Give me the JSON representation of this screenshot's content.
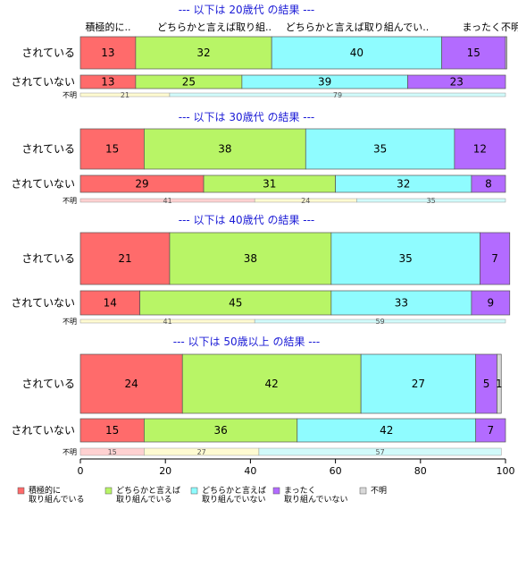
{
  "chart_data": {
    "type": "bar",
    "orientation": "horizontal",
    "stacked": true,
    "xlim": [
      0,
      100
    ],
    "x_ticks": [
      "0",
      "20",
      "40",
      "60",
      "80",
      "100"
    ],
    "top_header_labels": [
      "積極的に..",
      "どちらかと言えば取り組..",
      "どちらかと言えば取り組んでい..",
      "まったく.",
      "不明"
    ],
    "legend_position": "bottom",
    "colors": [
      "#ff6b6b",
      "#b8f566",
      "#8ffcff",
      "#b36bff",
      "#d9d9d9"
    ],
    "na_colors": [
      "#ffd1d1",
      "#fffbd1",
      "#d1fbfb"
    ],
    "legend": [
      {
        "lines": [
          "積極的に",
          "取り組んでいる"
        ]
      },
      {
        "lines": [
          "どちらかと言えば",
          "取り組んでいる"
        ]
      },
      {
        "lines": [
          "どちらかと言えば",
          "取り組んでいない"
        ]
      },
      {
        "lines": [
          "まったく",
          "取り組んでいない"
        ]
      },
      {
        "lines": [
          "不明"
        ]
      }
    ],
    "groups": [
      {
        "title": "--- 以下は 20歳代 の結果 ---",
        "rows": [
          {
            "label": "されている",
            "values": [
              13,
              32,
              40,
              15,
              0.3
            ],
            "value_labels": [
              "13",
              "32",
              "40",
              "15",
              ""
            ]
          },
          {
            "label": "されていない",
            "values": [
              13,
              25,
              39,
              23,
              0
            ],
            "value_labels": [
              "13",
              "25",
              "39",
              "23",
              ""
            ]
          },
          {
            "label": "不明",
            "values": [
              21,
              79
            ],
            "value_labels": [
              "21",
              "79"
            ],
            "fill_index": [
              1,
              2
            ]
          }
        ]
      },
      {
        "title": "--- 以下は 30歳代 の結果 ---",
        "rows": [
          {
            "label": "されている",
            "values": [
              15,
              38,
              35,
              12,
              0
            ],
            "value_labels": [
              "15",
              "38",
              "35",
              "12",
              ""
            ]
          },
          {
            "label": "されていない",
            "values": [
              29,
              31,
              32,
              8,
              0
            ],
            "value_labels": [
              "29",
              "31",
              "32",
              "8",
              ""
            ]
          },
          {
            "label": "不明",
            "values": [
              41,
              24,
              35
            ],
            "value_labels": [
              "41",
              "24",
              "35"
            ],
            "fill_index": [
              0,
              1,
              2
            ]
          }
        ]
      },
      {
        "title": "--- 以下は 40歳代 の結果 ---",
        "rows": [
          {
            "label": "されている",
            "values": [
              21,
              38,
              35,
              7,
              0
            ],
            "value_labels": [
              "21",
              "38",
              "35",
              "7",
              ""
            ]
          },
          {
            "label": "されていない",
            "values": [
              14,
              45,
              33,
              9,
              0
            ],
            "value_labels": [
              "14",
              "45",
              "33",
              "9",
              ""
            ]
          },
          {
            "label": "不明",
            "values": [
              41,
              59
            ],
            "value_labels": [
              "41",
              "59"
            ],
            "fill_index": [
              1,
              2
            ]
          }
        ]
      },
      {
        "title": "--- 以下は 50歳以上 の結果 ---",
        "rows": [
          {
            "label": "されている",
            "values": [
              24,
              42,
              27,
              5,
              1
            ],
            "value_labels": [
              "24",
              "42",
              "27",
              "5",
              "1"
            ]
          },
          {
            "label": "されていない",
            "values": [
              15,
              36,
              42,
              7,
              0
            ],
            "value_labels": [
              "15",
              "36",
              "42",
              "7",
              ""
            ]
          },
          {
            "label": "不明",
            "values": [
              15,
              27,
              57
            ],
            "value_labels": [
              "15",
              "27",
              "57"
            ],
            "fill_index": [
              0,
              1,
              2
            ]
          }
        ]
      }
    ]
  }
}
